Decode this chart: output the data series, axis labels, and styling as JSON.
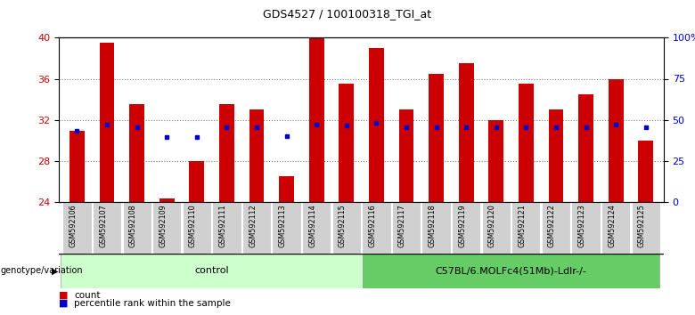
{
  "title": "GDS4527 / 100100318_TGI_at",
  "samples": [
    "GSM592106",
    "GSM592107",
    "GSM592108",
    "GSM592109",
    "GSM592110",
    "GSM592111",
    "GSM592112",
    "GSM592113",
    "GSM592114",
    "GSM592115",
    "GSM592116",
    "GSM592117",
    "GSM592118",
    "GSM592119",
    "GSM592120",
    "GSM592121",
    "GSM592122",
    "GSM592123",
    "GSM592124",
    "GSM592125"
  ],
  "bar_heights": [
    30.9,
    39.5,
    33.5,
    24.3,
    28.0,
    33.5,
    33.0,
    26.5,
    40.0,
    35.5,
    39.0,
    33.0,
    36.5,
    37.5,
    32.0,
    35.5,
    33.0,
    34.5,
    36.0,
    30.0
  ],
  "blue_markers": [
    30.9,
    31.5,
    31.3,
    30.3,
    30.3,
    31.3,
    31.3,
    30.4,
    31.5,
    31.4,
    31.7,
    31.3,
    31.3,
    31.3,
    31.3,
    31.3,
    31.3,
    31.3,
    31.5,
    31.3
  ],
  "bar_color": "#cc0000",
  "blue_color": "#0000cc",
  "ylim_left": [
    24,
    40
  ],
  "yticks_left": [
    24,
    28,
    32,
    36,
    40
  ],
  "yticks_right_vals": [
    0,
    25,
    50,
    75,
    100
  ],
  "yticks_right_labels": [
    "0",
    "25",
    "50",
    "75",
    "100%"
  ],
  "group1_label": "control",
  "group2_label": "C57BL/6.MOLFc4(51Mb)-Ldlr-/-",
  "group1_color": "#ccffcc",
  "group2_color": "#66cc66",
  "legend_count": "count",
  "legend_pct": "percentile rank within the sample",
  "bar_bottom": 24,
  "hgrid_lines": [
    28,
    32,
    36
  ],
  "n_samples": 20,
  "label_bg_color": "#d0d0d0",
  "bar_width": 0.5
}
